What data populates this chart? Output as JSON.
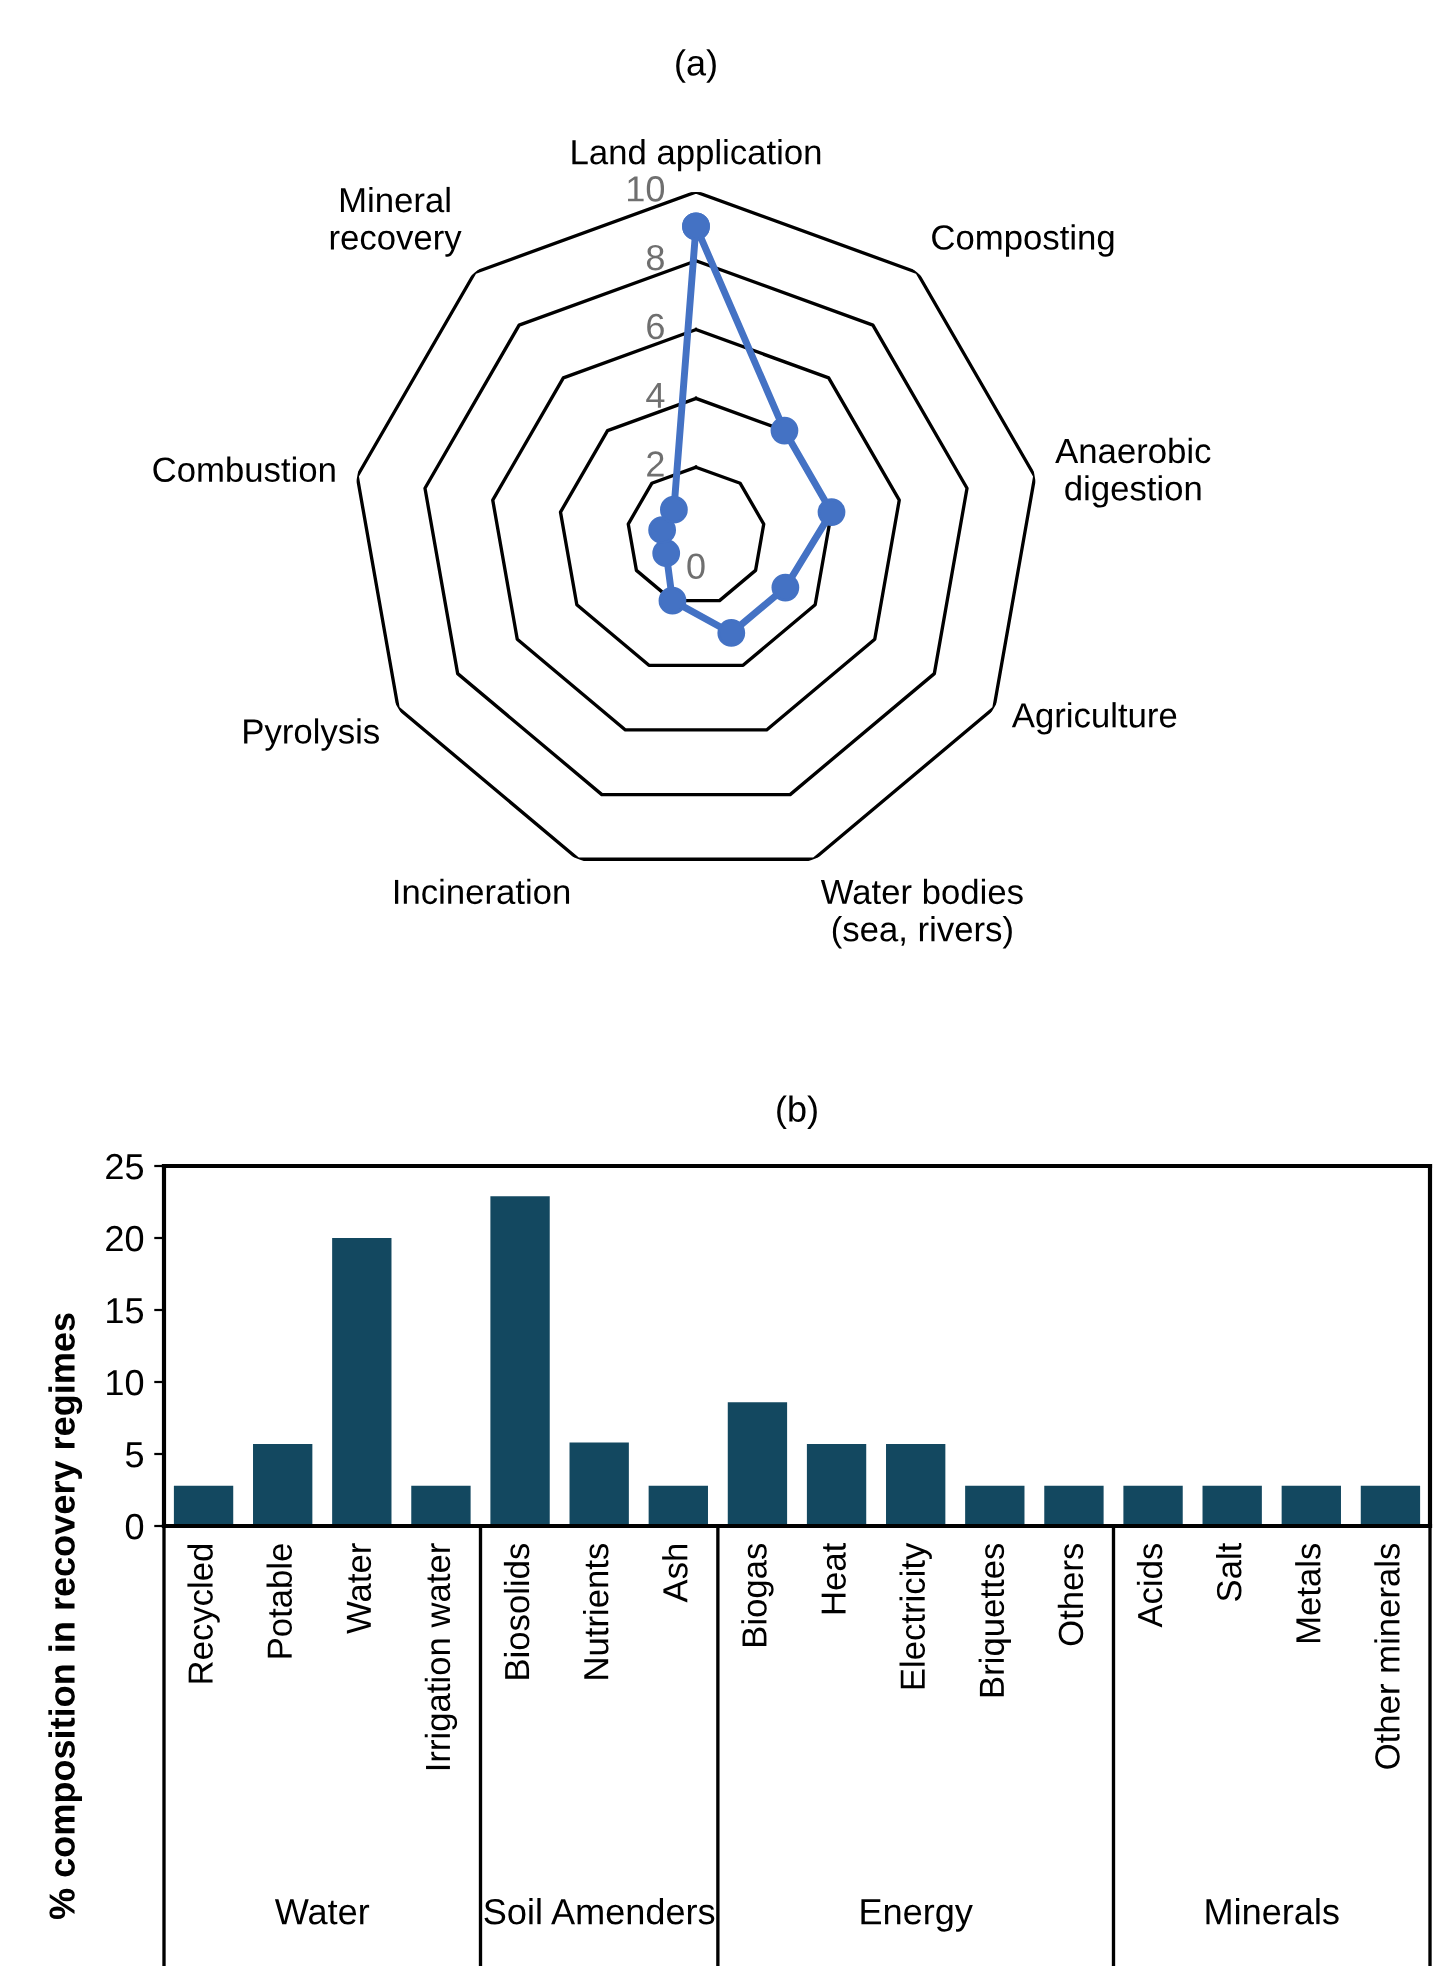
{
  "chart_data": [
    {
      "type": "radar",
      "title": "(a)",
      "categories": [
        "Land application",
        "Composting",
        "Anaerobic digestion",
        "Agriculture",
        "Water bodies (sea, rivers)",
        "Incineration",
        "Pyrolysis",
        "Combustion",
        "Mineral recovery"
      ],
      "series": [
        {
          "color": "#4472c4",
          "values": [
            9,
            4,
            4,
            3,
            3,
            2,
            1,
            1,
            1
          ]
        }
      ],
      "ylim": [
        0,
        10
      ],
      "yticks": [
        0,
        2,
        4,
        6,
        8,
        10
      ],
      "marker": "circle",
      "grid": true
    },
    {
      "type": "bar",
      "title": "(b)",
      "ylabel": "% composition in recovery regimes",
      "categories": [
        "Recycled",
        "Potable",
        "Water",
        "Irrigation water",
        "Biosolids",
        "Nutrients",
        "Ash",
        "Biogas",
        "Heat",
        "Electricity",
        "Briquettes",
        "Others",
        "Acids",
        "Salt",
        "Metals",
        "Other minerals"
      ],
      "values": [
        2.8,
        5.7,
        20,
        2.8,
        22.9,
        5.8,
        2.8,
        8.6,
        5.7,
        5.7,
        2.8,
        2.8,
        2.8,
        2.8,
        2.8,
        2.8
      ],
      "color": "#134860",
      "ylim": [
        0,
        25
      ],
      "yticks": [
        0,
        5,
        10,
        15,
        20,
        25
      ],
      "grid": false,
      "annotations": [
        "Water",
        "Soil Amenders",
        "Energy",
        "Minerals"
      ]
    }
  ]
}
